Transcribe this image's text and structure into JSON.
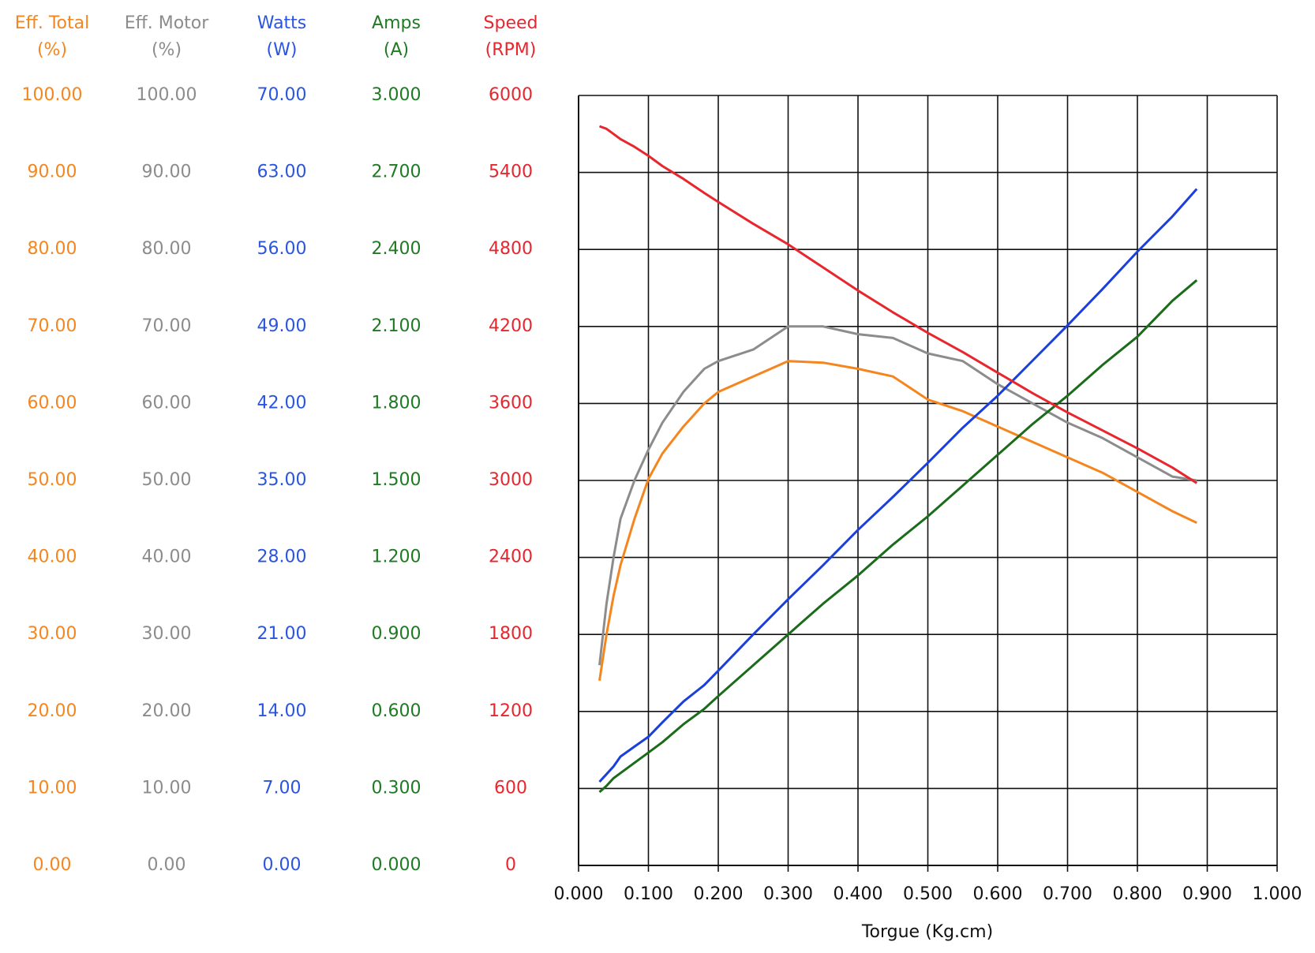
{
  "chart_data": {
    "type": "line",
    "xlabel": "Torgue (Kg.cm)",
    "xlim": [
      0,
      1
    ],
    "xticks": [
      {
        "value": 0,
        "label": "0.000"
      },
      {
        "value": 0.1,
        "label": "0.100"
      },
      {
        "value": 0.2,
        "label": "0.200"
      },
      {
        "value": 0.3,
        "label": "0.300"
      },
      {
        "value": 0.4,
        "label": "0.400"
      },
      {
        "value": 0.5,
        "label": "0.500"
      },
      {
        "value": 0.6,
        "label": "0.600"
      },
      {
        "value": 0.7,
        "label": "0.700"
      },
      {
        "value": 0.8,
        "label": "0.800"
      },
      {
        "value": 0.9,
        "label": "0.900"
      },
      {
        "value": 1,
        "label": "1.000"
      }
    ],
    "grid": true,
    "axes": [
      {
        "name": "Eff. Total",
        "unit": "(%)",
        "color": "#f5861f",
        "ylim": [
          0,
          100
        ],
        "yticks": [
          {
            "value": 0,
            "label": "0.00"
          },
          {
            "value": 10,
            "label": "10.00"
          },
          {
            "value": 20,
            "label": "20.00"
          },
          {
            "value": 30,
            "label": "30.00"
          },
          {
            "value": 40,
            "label": "40.00"
          },
          {
            "value": 50,
            "label": "50.00"
          },
          {
            "value": 60,
            "label": "60.00"
          },
          {
            "value": 70,
            "label": "70.00"
          },
          {
            "value": 80,
            "label": "80.00"
          },
          {
            "value": 90,
            "label": "90.00"
          },
          {
            "value": 100,
            "label": "100.00"
          }
        ]
      },
      {
        "name": "Eff. Motor",
        "unit": "(%)",
        "color": "#8c8c8c",
        "ylim": [
          0,
          100
        ],
        "yticks": [
          {
            "value": 0,
            "label": "0.00"
          },
          {
            "value": 10,
            "label": "10.00"
          },
          {
            "value": 20,
            "label": "20.00"
          },
          {
            "value": 30,
            "label": "30.00"
          },
          {
            "value": 40,
            "label": "40.00"
          },
          {
            "value": 50,
            "label": "50.00"
          },
          {
            "value": 60,
            "label": "60.00"
          },
          {
            "value": 70,
            "label": "70.00"
          },
          {
            "value": 80,
            "label": "80.00"
          },
          {
            "value": 90,
            "label": "90.00"
          },
          {
            "value": 100,
            "label": "100.00"
          }
        ]
      },
      {
        "name": "Watts",
        "unit": "(W)",
        "color": "#2a55e0",
        "ylim": [
          0,
          70
        ],
        "yticks": [
          {
            "value": 0,
            "label": "0.00"
          },
          {
            "value": 7,
            "label": "7.00"
          },
          {
            "value": 14,
            "label": "14.00"
          },
          {
            "value": 21,
            "label": "21.00"
          },
          {
            "value": 28,
            "label": "28.00"
          },
          {
            "value": 35,
            "label": "35.00"
          },
          {
            "value": 42,
            "label": "42.00"
          },
          {
            "value": 49,
            "label": "49.00"
          },
          {
            "value": 56,
            "label": "56.00"
          },
          {
            "value": 63,
            "label": "63.00"
          },
          {
            "value": 70,
            "label": "70.00"
          }
        ]
      },
      {
        "name": "Amps",
        "unit": "(A)",
        "color": "#1f7a24",
        "ylim": [
          0,
          3
        ],
        "yticks": [
          {
            "value": 0,
            "label": "0.000"
          },
          {
            "value": 0.3,
            "label": "0.300"
          },
          {
            "value": 0.6,
            "label": "0.600"
          },
          {
            "value": 0.9,
            "label": "0.900"
          },
          {
            "value": 1.2,
            "label": "1.200"
          },
          {
            "value": 1.5,
            "label": "1.500"
          },
          {
            "value": 1.8,
            "label": "1.800"
          },
          {
            "value": 2.1,
            "label": "2.100"
          },
          {
            "value": 2.4,
            "label": "2.400"
          },
          {
            "value": 2.7,
            "label": "2.700"
          },
          {
            "value": 3,
            "label": "3.000"
          }
        ]
      },
      {
        "name": "Speed",
        "unit": "(RPM)",
        "color": "#e8262e",
        "ylim": [
          0,
          6000
        ],
        "yticks": [
          0,
          600,
          1200,
          1800,
          2400,
          3000,
          3600,
          4200,
          4800,
          5400,
          6000
        ]
      }
    ],
    "x": [
      0.03,
      0.04,
      0.05,
      0.06,
      0.08,
      0.1,
      0.12,
      0.15,
      0.18,
      0.2,
      0.25,
      0.3,
      0.35,
      0.4,
      0.45,
      0.5,
      0.55,
      0.6,
      0.65,
      0.7,
      0.75,
      0.8,
      0.85,
      0.885
    ],
    "series": [
      {
        "axis": 0,
        "color": "#f5861f",
        "values": [
          24,
          30,
          35,
          39,
          45,
          50.2,
          53.5,
          57,
          60,
          61.5,
          63.5,
          65.5,
          65.3,
          64.5,
          63.5,
          60.5,
          59,
          57,
          55,
          53,
          51,
          48.5,
          46,
          44.5
        ]
      },
      {
        "axis": 1,
        "color": "#8c8c8c",
        "values": [
          26,
          34,
          40,
          45,
          50,
          54,
          57.5,
          61.5,
          64.5,
          65.5,
          67,
          70,
          70,
          69,
          68.5,
          66.5,
          65.5,
          62.5,
          60,
          57.5,
          55.5,
          53,
          50.5,
          50
        ]
      },
      {
        "axis": 2,
        "color": "#1a3fdc",
        "values": [
          7.6,
          8.3,
          9.0,
          9.9,
          10.8,
          11.7,
          13.0,
          14.9,
          16.4,
          17.7,
          21.0,
          24.2,
          27.3,
          30.5,
          33.5,
          36.6,
          39.8,
          42.7,
          45.9,
          49.1,
          52.4,
          55.8,
          59.0,
          61.5
        ]
      },
      {
        "axis": 3,
        "color": "#1a6b1a",
        "values": [
          0.286,
          0.31,
          0.34,
          0.36,
          0.4,
          0.44,
          0.48,
          0.55,
          0.61,
          0.66,
          0.78,
          0.9,
          1.02,
          1.13,
          1.25,
          1.36,
          1.48,
          1.6,
          1.72,
          1.83,
          1.95,
          2.06,
          2.2,
          2.28
        ]
      },
      {
        "axis": 4,
        "color": "#e8262e",
        "values": [
          5760,
          5740,
          5700,
          5660,
          5600,
          5530,
          5450,
          5350,
          5240,
          5170,
          5000,
          4840,
          4660,
          4480,
          4310,
          4150,
          4000,
          3840,
          3680,
          3530,
          3390,
          3250,
          3100,
          2980
        ]
      }
    ]
  }
}
